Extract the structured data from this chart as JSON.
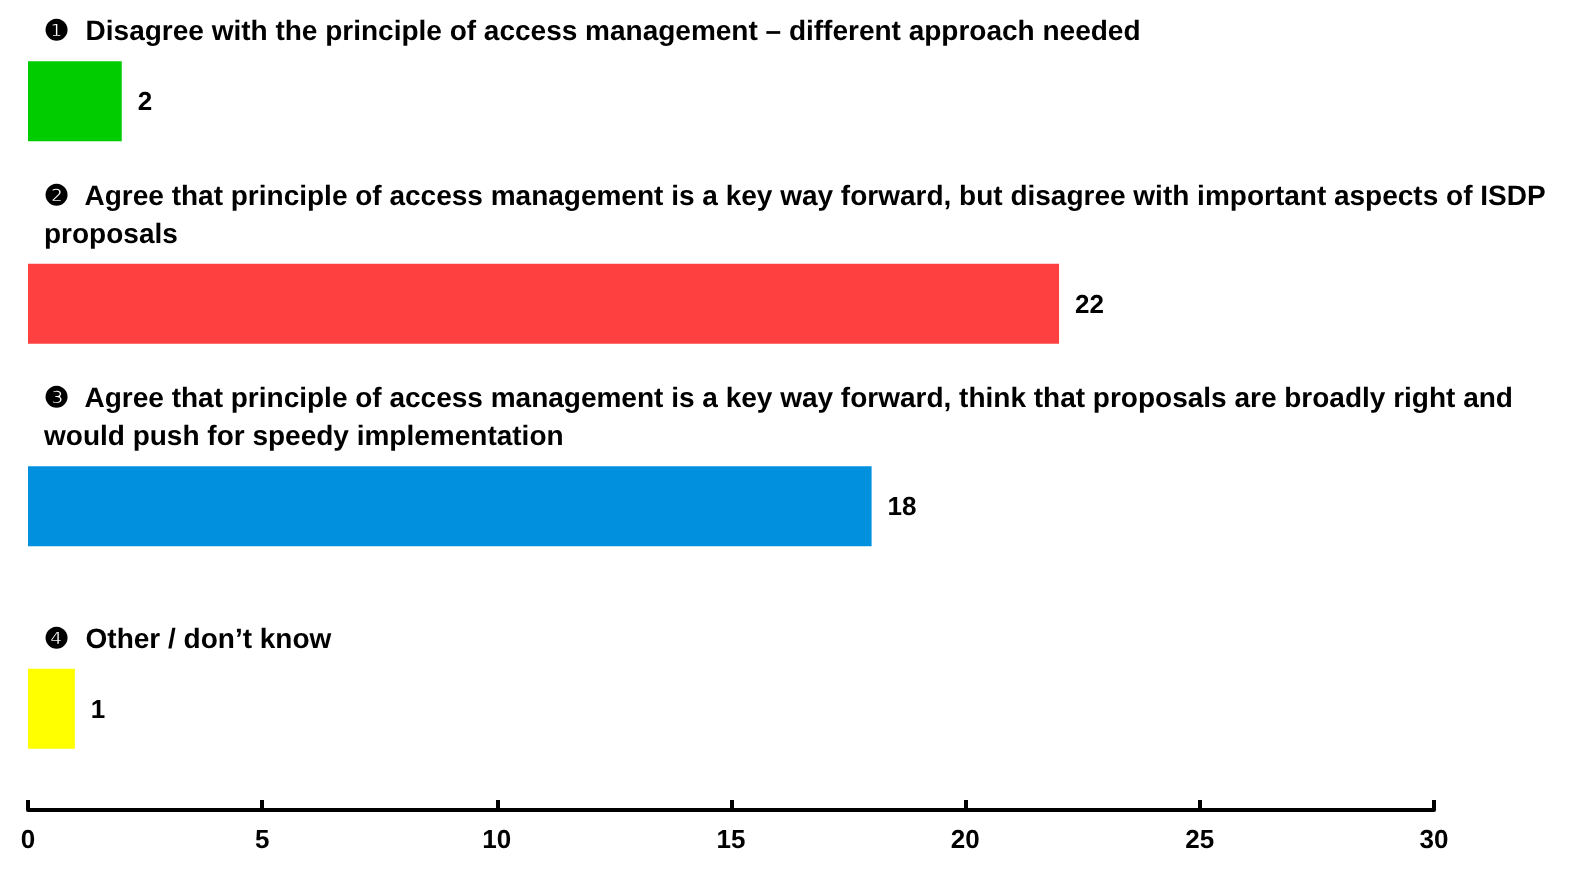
{
  "chart_data": {
    "type": "bar",
    "orientation": "horizontal",
    "categories": [
      "❶  Disagree with the principle of access management – different approach needed",
      "❷  Agree that principle of access management is a key way forward, but disagree with important aspects of ISDP proposals",
      "❸  Agree that principle of access management is a key way forward, think that proposals are broadly right and would push for speedy implementation",
      "❹  Other / don’t know"
    ],
    "values": [
      2,
      22,
      18,
      1
    ],
    "colors": [
      "#00cc00",
      "#ff4040",
      "#0090dd",
      "#ffff00"
    ],
    "xlim": [
      0,
      30
    ],
    "xticks": [
      0,
      5,
      10,
      15,
      20,
      25,
      30
    ],
    "grid": false,
    "data_labels": true
  }
}
